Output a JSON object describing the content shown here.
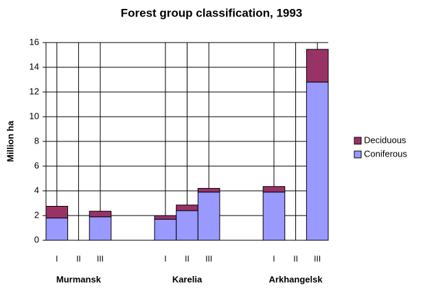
{
  "chart_data": {
    "type": "stacked_bar",
    "title": "Forest group classification, 1993",
    "y_label": "Million ha",
    "groups": [
      "Murmansk",
      "Karelia",
      "Arkhangelsk"
    ],
    "categories": [
      "I",
      "II",
      "III",
      "I",
      "II",
      "III",
      "I",
      "II",
      "III"
    ],
    "series": [
      {
        "name": "Coniferous",
        "color": "#9999ff",
        "values": [
          1.8,
          0,
          1.9,
          1.7,
          2.4,
          3.9,
          3.9,
          0,
          12.8
        ]
      },
      {
        "name": "Deciduous",
        "color": "#993366",
        "values": [
          0.95,
          0,
          0.45,
          0.3,
          0.45,
          0.3,
          0.45,
          0,
          2.65
        ]
      }
    ],
    "ylim": [
      0,
      16
    ],
    "yticks": [
      0,
      2,
      4,
      6,
      8,
      10,
      12,
      14,
      16
    ],
    "grid": true,
    "xgrid": true,
    "legend": "right"
  }
}
